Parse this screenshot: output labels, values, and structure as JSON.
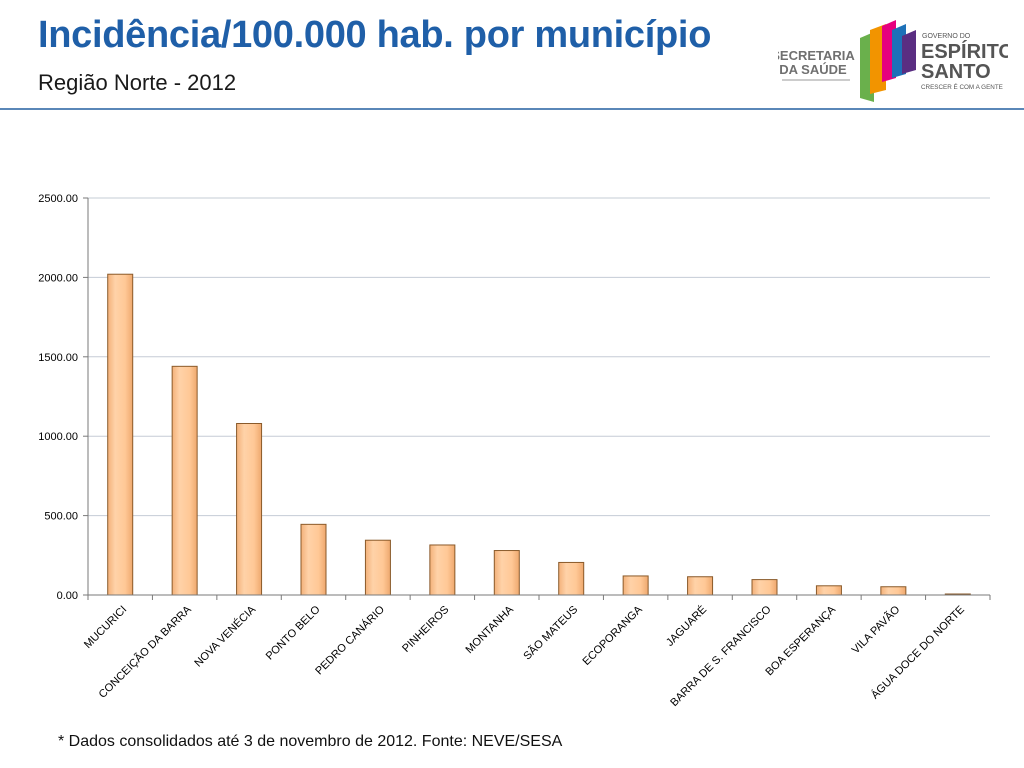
{
  "header": {
    "title": "Incidência/100.000 hab. por município",
    "subtitle": "Região Norte - 2012"
  },
  "logo": {
    "secretaria_line1": "SECRETARIA",
    "secretaria_line2": "DA SAÚDE",
    "governo_do": "GOVERNO DO",
    "estado_line1": "ESPÍRITO",
    "estado_line2": "SANTO",
    "slogan": "CRESCER É COM A GENTE"
  },
  "chart_data": {
    "type": "bar",
    "categories": [
      "MUCURICI",
      "CONCEIÇÃO DA BARRA",
      "NOVA VENÉCIA",
      "PONTO BELO",
      "PEDRO CANÁRIO",
      "PINHEIROS",
      "MONTANHA",
      "SÃO MATEUS",
      "ECOPORANGA",
      "JAGUARÉ",
      "BARRA DE S. FRANCISCO",
      "BOA ESPERANÇA",
      "VILA PAVÃO",
      "ÁGUA DOCE DO NORTE"
    ],
    "values": [
      2020,
      1440,
      1080,
      445,
      345,
      315,
      280,
      205,
      120,
      115,
      97,
      58,
      52,
      5
    ],
    "ylim": [
      0,
      2500
    ],
    "yticks": [
      "0.00",
      "500.00",
      "1000.00",
      "1500.00",
      "2000.00",
      "2500.00"
    ],
    "ytick_values": [
      0,
      500,
      1000,
      1500,
      2000,
      2500
    ],
    "title": "",
    "xlabel": "",
    "ylabel": "",
    "grid": true,
    "bar_color": "#FFC896",
    "bar_edge": "#8a5a2a"
  },
  "footnote": "* Dados consolidados até 3 de novembro de 2012. Fonte: NEVE/SESA"
}
